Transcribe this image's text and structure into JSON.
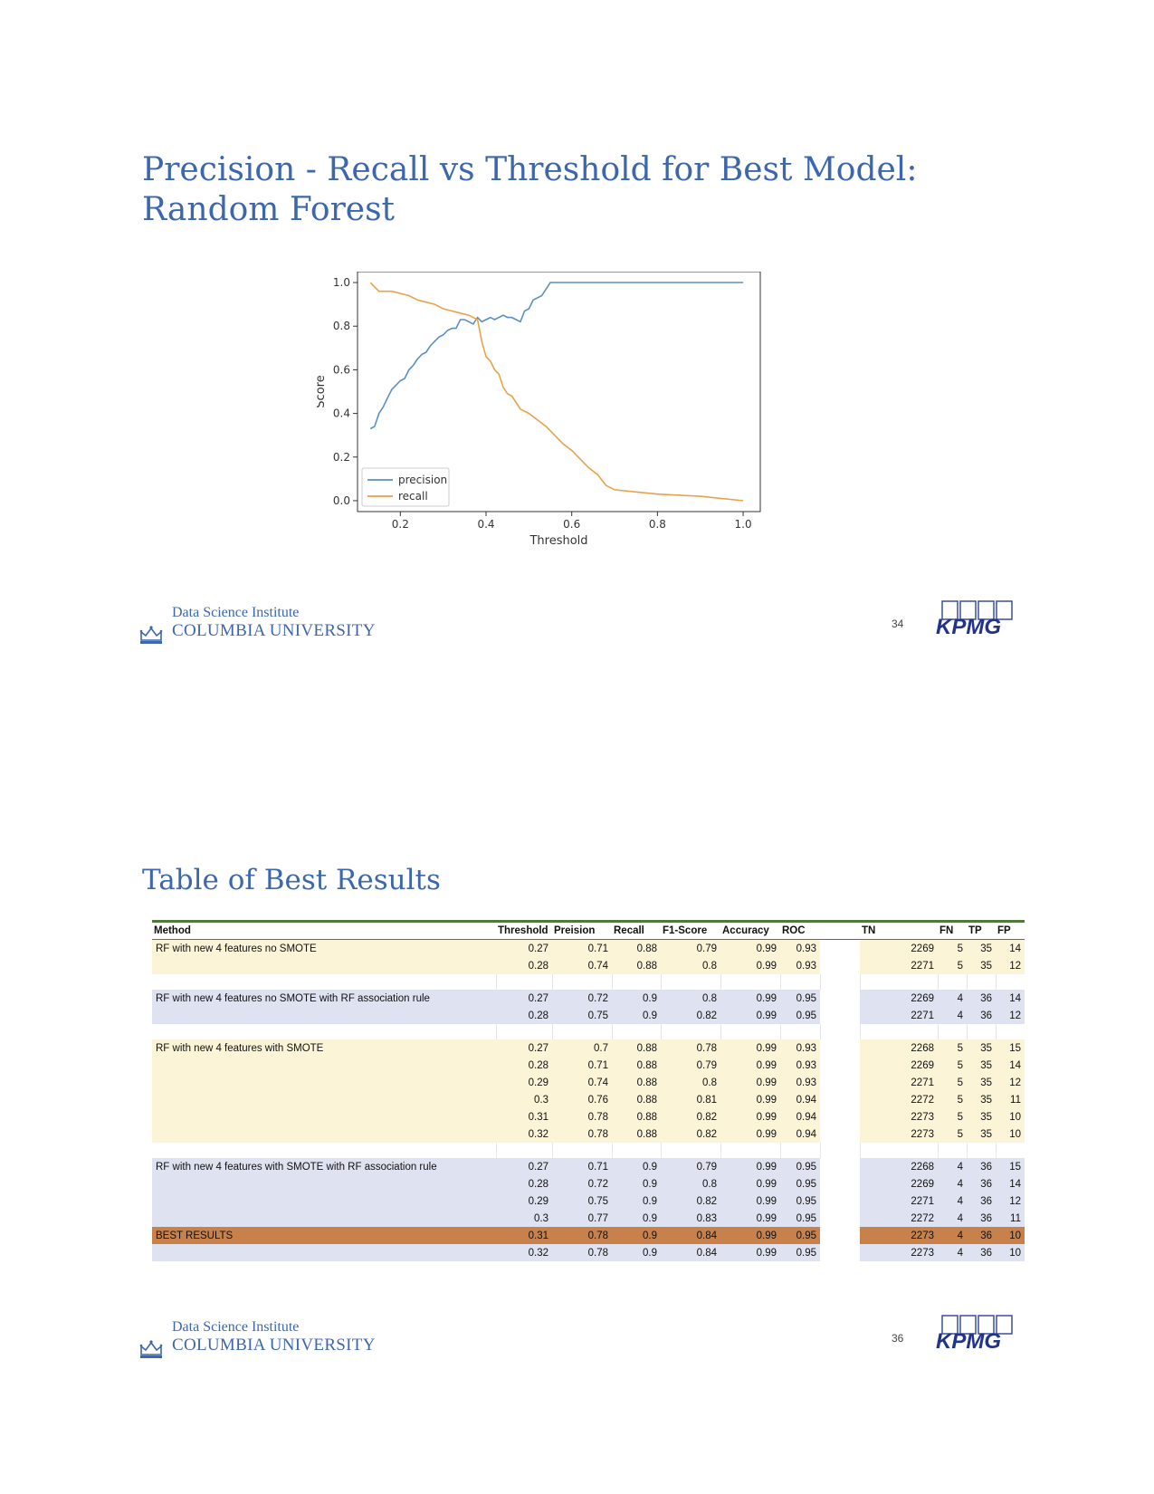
{
  "slide1": {
    "title_line1": "Precision - Recall vs Threshold for Best Model:",
    "title_line2": "Random Forest",
    "page_number": "34"
  },
  "slide2": {
    "title": "Table of Best Results",
    "page_number": "36"
  },
  "footer": {
    "institute": "Data Science Institute",
    "university": "COLUMBIA UNIVERSITY",
    "partner_logo": "KPMG"
  },
  "colors": {
    "title_blue": "#3c67ad",
    "precision_line": "#5b8fc4",
    "recall_line": "#e8a24a",
    "yellow_row": "#fbf4d6",
    "blue_row": "#dfe2f0",
    "best_row": "#c8814a",
    "header_rule": "#4f7a3a"
  },
  "chart_data": {
    "type": "line",
    "title": "",
    "xlabel": "Threshold",
    "ylabel": "Score",
    "xlim": [
      0.1,
      1.04
    ],
    "ylim": [
      -0.05,
      1.05
    ],
    "xticks": [
      "0.2",
      "0.4",
      "0.6",
      "0.8",
      "1.0"
    ],
    "yticks": [
      "0.0",
      "0.2",
      "0.4",
      "0.6",
      "0.8",
      "1.0"
    ],
    "grid": false,
    "legend_position": "lower-left",
    "series": [
      {
        "name": "precision",
        "color": "#5b8fc4",
        "x": [
          0.13,
          0.14,
          0.15,
          0.16,
          0.17,
          0.18,
          0.19,
          0.2,
          0.21,
          0.22,
          0.23,
          0.24,
          0.25,
          0.26,
          0.27,
          0.28,
          0.29,
          0.3,
          0.31,
          0.32,
          0.33,
          0.34,
          0.35,
          0.36,
          0.37,
          0.38,
          0.39,
          0.4,
          0.41,
          0.42,
          0.43,
          0.44,
          0.45,
          0.46,
          0.47,
          0.48,
          0.49,
          0.5,
          0.51,
          0.52,
          0.53,
          0.54,
          0.55,
          0.56,
          0.6,
          0.7,
          0.8,
          0.9,
          1.0
        ],
        "values": [
          0.33,
          0.34,
          0.4,
          0.43,
          0.47,
          0.51,
          0.53,
          0.55,
          0.56,
          0.6,
          0.62,
          0.65,
          0.67,
          0.68,
          0.71,
          0.73,
          0.75,
          0.76,
          0.78,
          0.79,
          0.79,
          0.83,
          0.83,
          0.82,
          0.81,
          0.84,
          0.82,
          0.83,
          0.84,
          0.83,
          0.84,
          0.85,
          0.84,
          0.84,
          0.83,
          0.82,
          0.87,
          0.88,
          0.92,
          0.93,
          0.94,
          0.97,
          1.0,
          1.0,
          1.0,
          1.0,
          1.0,
          1.0,
          1.0
        ]
      },
      {
        "name": "recall",
        "color": "#e8a24a",
        "x": [
          0.13,
          0.14,
          0.15,
          0.18,
          0.2,
          0.22,
          0.24,
          0.26,
          0.28,
          0.3,
          0.32,
          0.34,
          0.36,
          0.37,
          0.38,
          0.39,
          0.4,
          0.41,
          0.42,
          0.43,
          0.44,
          0.45,
          0.46,
          0.47,
          0.48,
          0.5,
          0.52,
          0.54,
          0.56,
          0.58,
          0.6,
          0.62,
          0.64,
          0.66,
          0.68,
          0.7,
          0.75,
          0.8,
          0.9,
          1.0
        ],
        "values": [
          1.0,
          0.98,
          0.96,
          0.96,
          0.95,
          0.94,
          0.92,
          0.91,
          0.9,
          0.88,
          0.87,
          0.86,
          0.85,
          0.84,
          0.83,
          0.73,
          0.66,
          0.64,
          0.6,
          0.58,
          0.52,
          0.49,
          0.48,
          0.45,
          0.42,
          0.4,
          0.37,
          0.34,
          0.3,
          0.26,
          0.23,
          0.19,
          0.15,
          0.12,
          0.07,
          0.05,
          0.04,
          0.03,
          0.02,
          0.0
        ]
      }
    ]
  },
  "table": {
    "headers": [
      "Method",
      "Threshold",
      "Preision",
      "Recall",
      "F1-Score",
      "Accuracy",
      "ROC",
      "",
      "TN",
      "FN",
      "TP",
      "FP"
    ],
    "groups": [
      {
        "style": "ylw",
        "rows": [
          [
            "RF with new 4 features no SMOTE",
            "0.27",
            "0.71",
            "0.88",
            "0.79",
            "0.99",
            "0.93",
            "",
            "2269",
            "5",
            "35",
            "14"
          ],
          [
            "",
            "0.28",
            "0.74",
            "0.88",
            "0.8",
            "0.99",
            "0.93",
            "",
            "2271",
            "5",
            "35",
            "12"
          ]
        ]
      },
      {
        "style": "blu",
        "rows": [
          [
            "RF with new 4 features no SMOTE with RF association rule",
            "0.27",
            "0.72",
            "0.9",
            "0.8",
            "0.99",
            "0.95",
            "",
            "2269",
            "4",
            "36",
            "14"
          ],
          [
            "",
            "0.28",
            "0.75",
            "0.9",
            "0.82",
            "0.99",
            "0.95",
            "",
            "2271",
            "4",
            "36",
            "12"
          ]
        ]
      },
      {
        "style": "ylw",
        "rows": [
          [
            "RF with new 4 features with SMOTE",
            "0.27",
            "0.7",
            "0.88",
            "0.78",
            "0.99",
            "0.93",
            "",
            "2268",
            "5",
            "35",
            "15"
          ],
          [
            "",
            "0.28",
            "0.71",
            "0.88",
            "0.79",
            "0.99",
            "0.93",
            "",
            "2269",
            "5",
            "35",
            "14"
          ],
          [
            "",
            "0.29",
            "0.74",
            "0.88",
            "0.8",
            "0.99",
            "0.93",
            "",
            "2271",
            "5",
            "35",
            "12"
          ],
          [
            "",
            "0.3",
            "0.76",
            "0.88",
            "0.81",
            "0.99",
            "0.94",
            "",
            "2272",
            "5",
            "35",
            "11"
          ],
          [
            "",
            "0.31",
            "0.78",
            "0.88",
            "0.82",
            "0.99",
            "0.94",
            "",
            "2273",
            "5",
            "35",
            "10"
          ],
          [
            "",
            "0.32",
            "0.78",
            "0.88",
            "0.82",
            "0.99",
            "0.94",
            "",
            "2273",
            "5",
            "35",
            "10"
          ]
        ]
      },
      {
        "style": "blu",
        "rows": [
          [
            "RF with new 4 features with SMOTE with RF association rule",
            "0.27",
            "0.71",
            "0.9",
            "0.79",
            "0.99",
            "0.95",
            "",
            "2268",
            "4",
            "36",
            "15"
          ],
          [
            "",
            "0.28",
            "0.72",
            "0.9",
            "0.8",
            "0.99",
            "0.95",
            "",
            "2269",
            "4",
            "36",
            "14"
          ],
          [
            "",
            "0.29",
            "0.75",
            "0.9",
            "0.82",
            "0.99",
            "0.95",
            "",
            "2271",
            "4",
            "36",
            "12"
          ],
          [
            "",
            "0.3",
            "0.77",
            "0.9",
            "0.83",
            "0.99",
            "0.95",
            "",
            "2272",
            "4",
            "36",
            "11"
          ],
          [
            "BEST RESULTS",
            "0.31",
            "0.78",
            "0.9",
            "0.84",
            "0.99",
            "0.95",
            "",
            "2273",
            "4",
            "36",
            "10"
          ],
          [
            "",
            "0.32",
            "0.78",
            "0.9",
            "0.84",
            "0.99",
            "0.95",
            "",
            "2273",
            "4",
            "36",
            "10"
          ]
        ]
      }
    ]
  }
}
